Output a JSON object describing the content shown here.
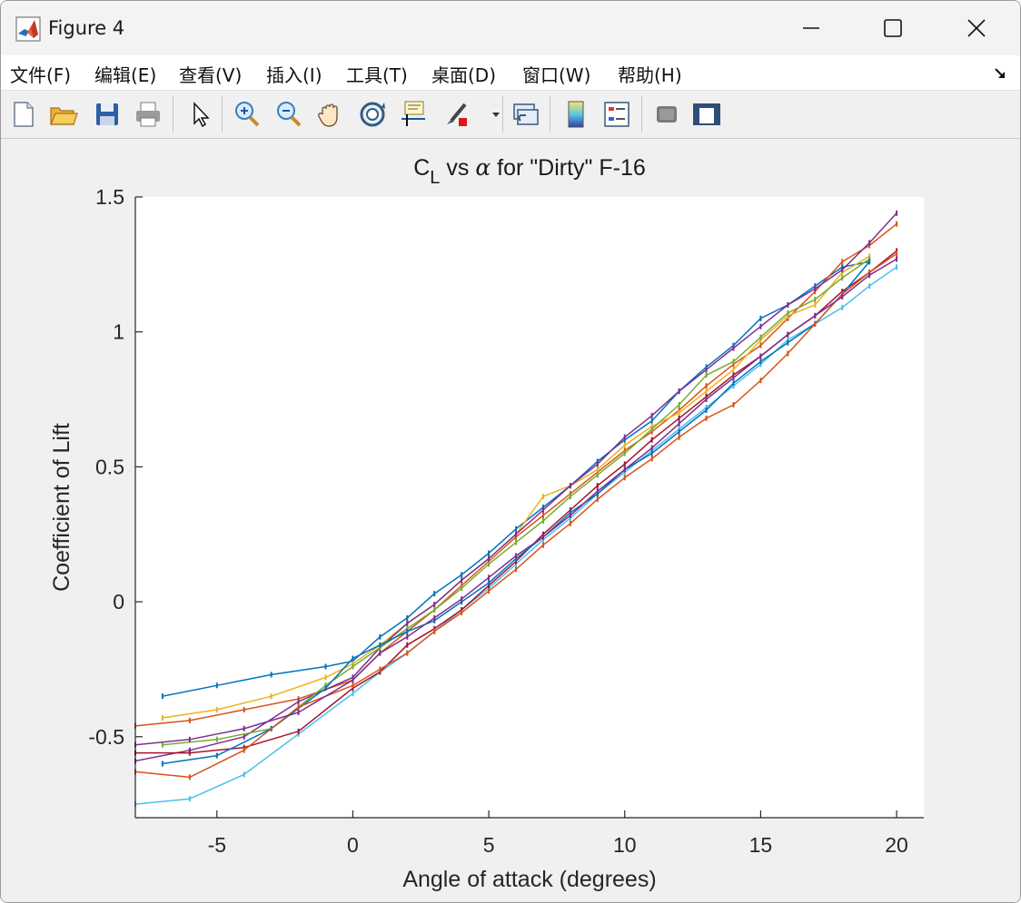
{
  "window": {
    "title": "Figure 4"
  },
  "menu": [
    {
      "label": "文件(F)"
    },
    {
      "label": "编辑(E)"
    },
    {
      "label": "查看(V)"
    },
    {
      "label": "插入(I)"
    },
    {
      "label": "工具(T)"
    },
    {
      "label": "桌面(D)"
    },
    {
      "label": "窗口(W)"
    },
    {
      "label": "帮助(H)"
    }
  ],
  "toolbar": [
    {
      "icon": "new-figure-icon"
    },
    {
      "icon": "open-file-icon"
    },
    {
      "icon": "save-icon"
    },
    {
      "icon": "print-icon"
    },
    {
      "icon": "pointer-icon"
    },
    {
      "icon": "zoom-in-icon"
    },
    {
      "icon": "zoom-out-icon"
    },
    {
      "icon": "pan-hand-icon"
    },
    {
      "icon": "rotate-3d-icon"
    },
    {
      "icon": "data-cursor-icon"
    },
    {
      "icon": "brush-icon"
    },
    {
      "icon": "link-plot-icon"
    },
    {
      "icon": "colorbar-icon"
    },
    {
      "icon": "legend-icon"
    },
    {
      "icon": "hide-plot-tools-icon"
    },
    {
      "icon": "show-plot-tools-icon"
    }
  ],
  "chart_data": {
    "type": "line",
    "title_main": "C",
    "title_sub": "L",
    "title_rest": " vs ",
    "title_symbol": "α",
    "title_tail": " for \"Dirty\" F-16",
    "xlabel": "Angle of attack (degrees)",
    "ylabel": "Coefficient of Lift",
    "xlim": [
      -8,
      21
    ],
    "ylim": [
      -0.8,
      1.5
    ],
    "xticks": [
      -5,
      0,
      5,
      10,
      15,
      20
    ],
    "xtick_labels": [
      "-5",
      "0",
      "5",
      "10",
      "15",
      "20"
    ],
    "yticks": [
      -0.5,
      0,
      0.5,
      1,
      1.5
    ],
    "ytick_labels": [
      "-0.5",
      "0",
      "0.5",
      "1",
      "1.5"
    ],
    "grid": false,
    "series": [
      {
        "color": "#0072BD",
        "points": [
          [
            -7,
            -0.35
          ],
          [
            -5,
            -0.31
          ],
          [
            -3,
            -0.27
          ],
          [
            -1,
            -0.24
          ],
          [
            0,
            -0.22
          ],
          [
            1,
            -0.13
          ],
          [
            2,
            -0.06
          ],
          [
            3,
            0.03
          ],
          [
            4,
            0.1
          ],
          [
            5,
            0.18
          ],
          [
            6,
            0.27
          ],
          [
            7,
            0.35
          ],
          [
            8,
            0.43
          ],
          [
            9,
            0.52
          ],
          [
            10,
            0.6
          ],
          [
            11,
            0.67
          ],
          [
            12,
            0.78
          ],
          [
            13,
            0.87
          ],
          [
            14,
            0.95
          ],
          [
            15,
            1.05
          ],
          [
            16,
            1.1
          ],
          [
            17,
            1.17
          ],
          [
            18,
            1.24
          ],
          [
            19,
            1.26
          ]
        ]
      },
      {
        "color": "#D95319",
        "points": [
          [
            -8,
            -0.46
          ],
          [
            -6,
            -0.44
          ],
          [
            -4,
            -0.4
          ],
          [
            -2,
            -0.36
          ],
          [
            0,
            -0.29
          ],
          [
            1,
            -0.19
          ],
          [
            2,
            -0.11
          ],
          [
            3,
            -0.03
          ],
          [
            4,
            0.06
          ],
          [
            5,
            0.15
          ],
          [
            6,
            0.24
          ],
          [
            7,
            0.32
          ],
          [
            8,
            0.4
          ],
          [
            9,
            0.48
          ],
          [
            10,
            0.56
          ],
          [
            11,
            0.63
          ],
          [
            12,
            0.71
          ],
          [
            13,
            0.8
          ],
          [
            14,
            0.88
          ],
          [
            15,
            0.95
          ],
          [
            16,
            1.05
          ],
          [
            17,
            1.15
          ],
          [
            18,
            1.26
          ],
          [
            19,
            1.32
          ],
          [
            20,
            1.4
          ]
        ]
      },
      {
        "color": "#EDB120",
        "points": [
          [
            -7,
            -0.43
          ],
          [
            -5,
            -0.4
          ],
          [
            -3,
            -0.35
          ],
          [
            -1,
            -0.28
          ],
          [
            0,
            -0.23
          ],
          [
            1,
            -0.16
          ],
          [
            2,
            -0.08
          ],
          [
            3,
            -0.01
          ],
          [
            4,
            0.08
          ],
          [
            5,
            0.16
          ],
          [
            6,
            0.25
          ],
          [
            7,
            0.39
          ],
          [
            8,
            0.43
          ],
          [
            9,
            0.49
          ],
          [
            10,
            0.58
          ],
          [
            11,
            0.65
          ],
          [
            12,
            0.7
          ],
          [
            13,
            0.78
          ],
          [
            14,
            0.86
          ],
          [
            15,
            0.97
          ],
          [
            16,
            1.06
          ],
          [
            17,
            1.1
          ],
          [
            18,
            1.22
          ],
          [
            19,
            1.28
          ]
        ]
      },
      {
        "color": "#7E2F8E",
        "points": [
          [
            -8,
            -0.59
          ],
          [
            -6,
            -0.55
          ],
          [
            -4,
            -0.5
          ],
          [
            -2,
            -0.37
          ],
          [
            0,
            -0.28
          ],
          [
            1,
            -0.17
          ],
          [
            2,
            -0.08
          ],
          [
            3,
            -0.01
          ],
          [
            4,
            0.08
          ],
          [
            5,
            0.16
          ],
          [
            6,
            0.25
          ],
          [
            7,
            0.34
          ],
          [
            8,
            0.43
          ],
          [
            9,
            0.51
          ],
          [
            10,
            0.61
          ],
          [
            11,
            0.69
          ],
          [
            12,
            0.78
          ],
          [
            13,
            0.86
          ],
          [
            14,
            0.94
          ],
          [
            15,
            1.02
          ],
          [
            16,
            1.1
          ],
          [
            17,
            1.16
          ],
          [
            18,
            1.23
          ],
          [
            19,
            1.33
          ],
          [
            20,
            1.44
          ]
        ]
      },
      {
        "color": "#77AC30",
        "points": [
          [
            -7,
            -0.53
          ],
          [
            -5,
            -0.51
          ],
          [
            -3,
            -0.47
          ],
          [
            -1,
            -0.31
          ],
          [
            0,
            -0.24
          ],
          [
            1,
            -0.17
          ],
          [
            2,
            -0.1
          ],
          [
            3,
            -0.03
          ],
          [
            4,
            0.05
          ],
          [
            5,
            0.14
          ],
          [
            6,
            0.22
          ],
          [
            7,
            0.3
          ],
          [
            8,
            0.39
          ],
          [
            9,
            0.47
          ],
          [
            10,
            0.55
          ],
          [
            11,
            0.64
          ],
          [
            12,
            0.73
          ],
          [
            13,
            0.84
          ],
          [
            14,
            0.89
          ],
          [
            15,
            0.98
          ],
          [
            16,
            1.07
          ],
          [
            17,
            1.12
          ],
          [
            18,
            1.2
          ],
          [
            19,
            1.27
          ]
        ]
      },
      {
        "color": "#4DBEEE",
        "points": [
          [
            -8,
            -0.75
          ],
          [
            -6,
            -0.73
          ],
          [
            -4,
            -0.64
          ],
          [
            -2,
            -0.49
          ],
          [
            0,
            -0.34
          ],
          [
            1,
            -0.26
          ],
          [
            2,
            -0.19
          ],
          [
            3,
            -0.11
          ],
          [
            4,
            -0.03
          ],
          [
            5,
            0.05
          ],
          [
            6,
            0.14
          ],
          [
            7,
            0.23
          ],
          [
            8,
            0.31
          ],
          [
            9,
            0.4
          ],
          [
            10,
            0.48
          ],
          [
            11,
            0.56
          ],
          [
            12,
            0.64
          ],
          [
            13,
            0.72
          ],
          [
            14,
            0.8
          ],
          [
            15,
            0.88
          ],
          [
            16,
            0.97
          ],
          [
            17,
            1.03
          ],
          [
            18,
            1.09
          ],
          [
            19,
            1.17
          ],
          [
            20,
            1.24
          ]
        ]
      },
      {
        "color": "#A2142F",
        "points": [
          [
            -8,
            -0.56
          ],
          [
            -6,
            -0.56
          ],
          [
            -4,
            -0.54
          ],
          [
            -2,
            -0.48
          ],
          [
            0,
            -0.32
          ],
          [
            1,
            -0.26
          ],
          [
            2,
            -0.16
          ],
          [
            3,
            -0.1
          ],
          [
            4,
            -0.03
          ],
          [
            5,
            0.06
          ],
          [
            6,
            0.15
          ],
          [
            7,
            0.25
          ],
          [
            8,
            0.34
          ],
          [
            9,
            0.43
          ],
          [
            10,
            0.51
          ],
          [
            11,
            0.6
          ],
          [
            12,
            0.68
          ],
          [
            13,
            0.76
          ],
          [
            14,
            0.84
          ],
          [
            15,
            0.91
          ],
          [
            16,
            0.99
          ],
          [
            17,
            1.06
          ],
          [
            18,
            1.15
          ],
          [
            19,
            1.22
          ],
          [
            20,
            1.3
          ]
        ]
      },
      {
        "color": "#0072BD",
        "points": [
          [
            -7,
            -0.6
          ],
          [
            -5,
            -0.57
          ],
          [
            -3,
            -0.47
          ],
          [
            -1,
            -0.32
          ],
          [
            0,
            -0.21
          ],
          [
            1,
            -0.16
          ],
          [
            2,
            -0.11
          ],
          [
            3,
            -0.07
          ],
          [
            4,
            0.0
          ],
          [
            5,
            0.07
          ],
          [
            6,
            0.16
          ],
          [
            7,
            0.24
          ],
          [
            8,
            0.33
          ],
          [
            9,
            0.4
          ],
          [
            10,
            0.49
          ],
          [
            11,
            0.55
          ],
          [
            12,
            0.63
          ],
          [
            13,
            0.71
          ],
          [
            14,
            0.81
          ],
          [
            15,
            0.89
          ],
          [
            16,
            0.96
          ],
          [
            17,
            1.03
          ],
          [
            18,
            1.14
          ],
          [
            19,
            1.26
          ]
        ]
      },
      {
        "color": "#D95319",
        "points": [
          [
            -8,
            -0.63
          ],
          [
            -6,
            -0.65
          ],
          [
            -4,
            -0.55
          ],
          [
            -2,
            -0.39
          ],
          [
            0,
            -0.31
          ],
          [
            1,
            -0.25
          ],
          [
            2,
            -0.19
          ],
          [
            3,
            -0.11
          ],
          [
            4,
            -0.04
          ],
          [
            5,
            0.04
          ],
          [
            6,
            0.12
          ],
          [
            7,
            0.21
          ],
          [
            8,
            0.29
          ],
          [
            9,
            0.38
          ],
          [
            10,
            0.46
          ],
          [
            11,
            0.53
          ],
          [
            12,
            0.61
          ],
          [
            13,
            0.68
          ],
          [
            14,
            0.73
          ],
          [
            15,
            0.82
          ],
          [
            16,
            0.92
          ],
          [
            17,
            1.03
          ],
          [
            18,
            1.14
          ],
          [
            19,
            1.22
          ],
          [
            20,
            1.29
          ]
        ]
      },
      {
        "color": "#7E2F8E",
        "points": [
          [
            -8,
            -0.53
          ],
          [
            -6,
            -0.51
          ],
          [
            -4,
            -0.47
          ],
          [
            -2,
            -0.41
          ],
          [
            0,
            -0.29
          ],
          [
            1,
            -0.19
          ],
          [
            2,
            -0.13
          ],
          [
            3,
            -0.06
          ],
          [
            4,
            0.01
          ],
          [
            5,
            0.09
          ],
          [
            6,
            0.17
          ],
          [
            7,
            0.24
          ],
          [
            8,
            0.32
          ],
          [
            9,
            0.41
          ],
          [
            10,
            0.49
          ],
          [
            11,
            0.57
          ],
          [
            12,
            0.66
          ],
          [
            13,
            0.75
          ],
          [
            14,
            0.83
          ],
          [
            15,
            0.91
          ],
          [
            16,
            0.99
          ],
          [
            17,
            1.06
          ],
          [
            18,
            1.13
          ],
          [
            19,
            1.21
          ],
          [
            20,
            1.27
          ]
        ]
      }
    ]
  }
}
